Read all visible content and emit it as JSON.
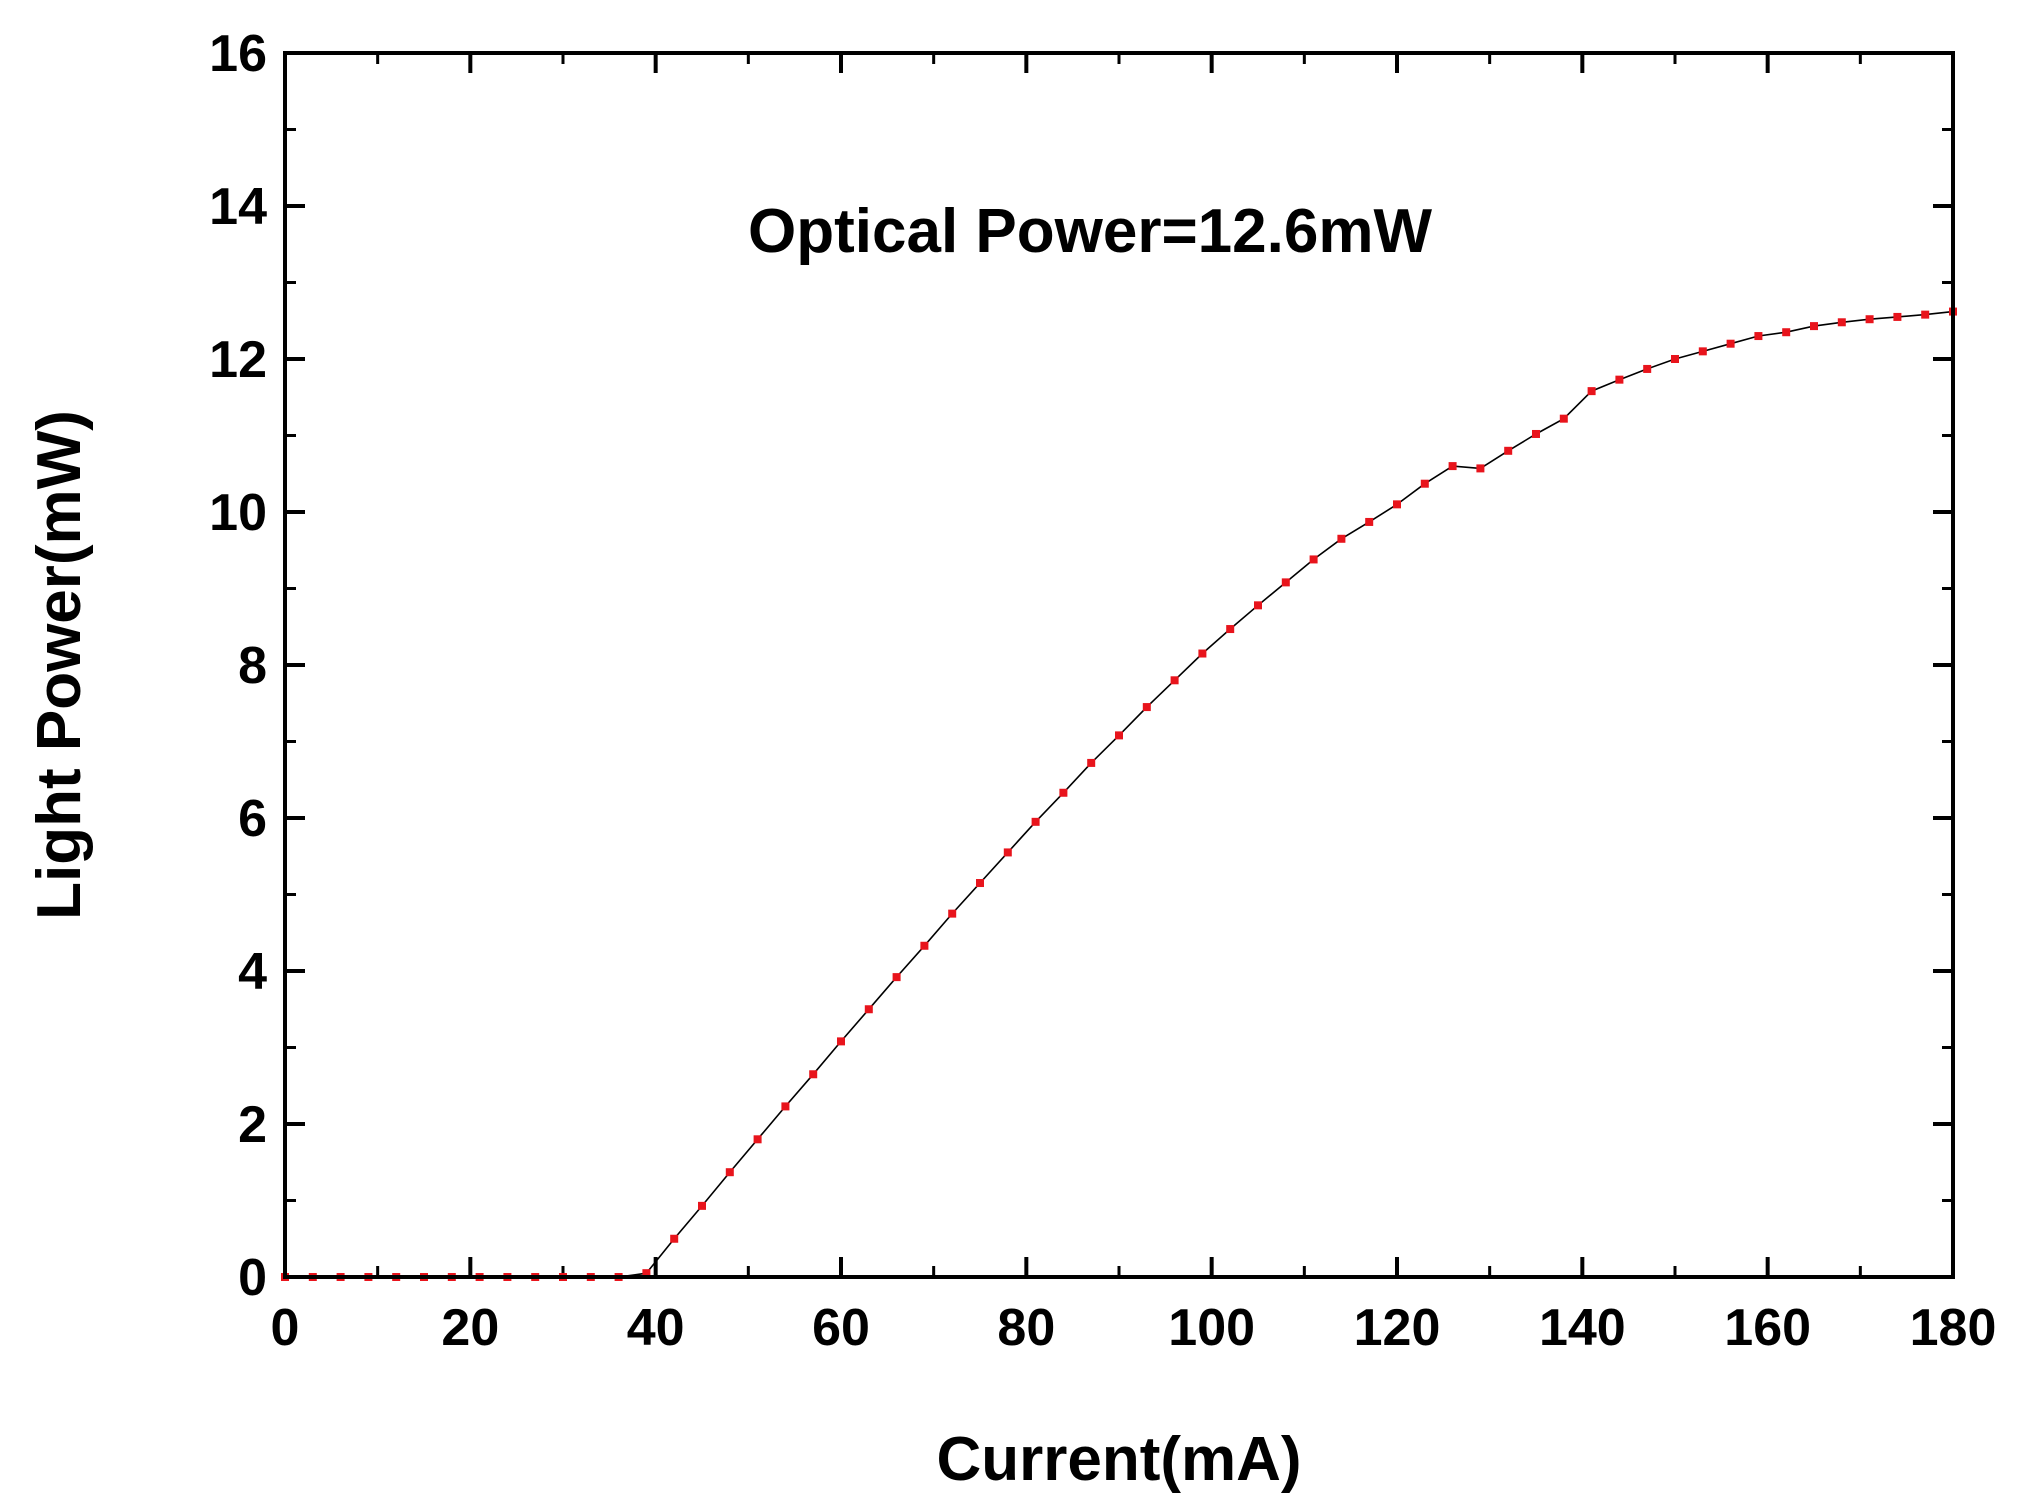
{
  "chart_data": {
    "type": "line",
    "title": "",
    "xlabel": "Current(mA)",
    "ylabel": "Light Power(mW)",
    "annotation": "Optical Power=12.6mW",
    "xlim": [
      0,
      180
    ],
    "ylim": [
      0,
      16
    ],
    "xticks": [
      0,
      20,
      40,
      60,
      80,
      100,
      120,
      140,
      160,
      180
    ],
    "yticks": [
      0,
      2,
      4,
      6,
      8,
      10,
      12,
      14,
      16
    ],
    "grid": false,
    "legend": "none",
    "line_color": "#000000",
    "marker_color": "#e8141c",
    "series": [
      {
        "x": [
          0,
          3,
          6,
          9,
          12,
          15,
          18,
          21,
          24,
          27,
          30,
          33,
          36,
          39,
          42,
          45,
          48,
          51,
          54,
          57,
          60,
          63,
          66,
          69,
          72,
          75,
          78,
          81,
          84,
          87,
          90,
          93,
          96,
          99,
          102,
          105,
          108,
          111,
          114,
          117,
          120,
          123,
          126,
          129,
          132,
          135,
          138,
          141,
          144,
          147,
          150,
          153,
          156,
          159,
          162,
          165,
          168,
          171,
          174,
          177,
          180
        ],
        "y": [
          0,
          0,
          0,
          0,
          0,
          0,
          0,
          0,
          0,
          0,
          0,
          0,
          0,
          0.05,
          0.5,
          0.93,
          1.37,
          1.8,
          2.23,
          2.65,
          3.08,
          3.5,
          3.92,
          4.33,
          4.75,
          5.15,
          5.55,
          5.95,
          6.33,
          6.72,
          7.08,
          7.45,
          7.8,
          8.15,
          8.47,
          8.78,
          9.08,
          9.38,
          9.65,
          9.87,
          10.1,
          10.37,
          10.6,
          10.57,
          10.8,
          11.02,
          11.22,
          11.58,
          11.73,
          11.87,
          12.0,
          12.1,
          12.2,
          12.3,
          12.35,
          12.43,
          12.48,
          12.52,
          12.55,
          12.58,
          12.62
        ]
      }
    ]
  }
}
